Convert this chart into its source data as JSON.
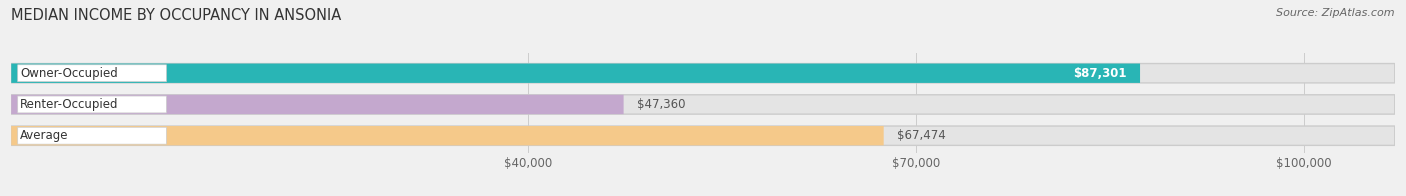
{
  "title": "MEDIAN INCOME BY OCCUPANCY IN ANSONIA",
  "source": "Source: ZipAtlas.com",
  "categories": [
    "Owner-Occupied",
    "Renter-Occupied",
    "Average"
  ],
  "values": [
    87301,
    47360,
    67474
  ],
  "labels": [
    "$87,301",
    "$47,360",
    "$67,474"
  ],
  "bar_colors": [
    "#29b5b5",
    "#c4a8ce",
    "#f5c98a"
  ],
  "background_color": "#f0f0f0",
  "bar_bg_color": "#e4e4e4",
  "xlim": [
    0,
    107000
  ],
  "xticks": [
    40000,
    70000,
    100000
  ],
  "xtick_labels": [
    "$40,000",
    "$70,000",
    "$100,000"
  ],
  "title_fontsize": 10.5,
  "label_fontsize": 8.5,
  "tick_fontsize": 8.5,
  "source_fontsize": 8
}
